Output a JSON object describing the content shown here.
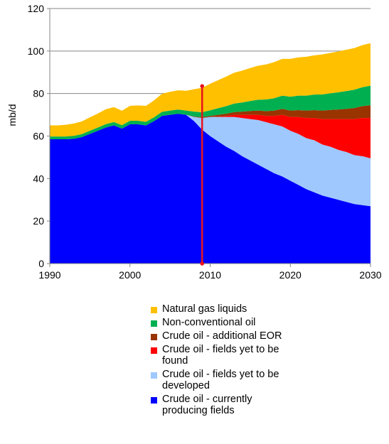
{
  "chart_data": {
    "type": "area",
    "stacked": true,
    "ylabel": "mb/d",
    "xlabel": "",
    "xlim": [
      1990,
      2030
    ],
    "ylim": [
      0,
      120
    ],
    "xticks": [
      "1990",
      "2000",
      "2010",
      "2020",
      "2030"
    ],
    "yticks": [
      "0",
      "20",
      "40",
      "60",
      "80",
      "100",
      "120"
    ],
    "grid": "horizontal",
    "legend_position": "bottom",
    "x": [
      1990,
      1991,
      1992,
      1993,
      1994,
      1995,
      1996,
      1997,
      1998,
      1999,
      2000,
      2001,
      2002,
      2003,
      2004,
      2005,
      2006,
      2007,
      2008,
      2009,
      2010,
      2011,
      2012,
      2013,
      2014,
      2015,
      2016,
      2017,
      2018,
      2019,
      2020,
      2021,
      2022,
      2023,
      2024,
      2025,
      2026,
      2027,
      2028,
      2029,
      2030
    ],
    "marker_line": {
      "x": 2009,
      "y_top": 83.5,
      "color": "#e8131b"
    },
    "series": [
      {
        "name": "Crude oil - currently producing fields",
        "color": "#0000ff",
        "values": [
          58.5,
          58.5,
          58.5,
          58.7,
          59.5,
          61,
          62.5,
          64,
          65,
          63.5,
          65.5,
          65.5,
          65,
          67,
          69.5,
          70,
          70.5,
          70,
          67,
          63,
          60,
          57.5,
          55,
          53,
          50.5,
          48.5,
          46.5,
          44.5,
          42.5,
          41,
          39,
          37,
          35,
          33.5,
          32,
          31,
          30,
          29,
          28,
          27.5,
          27
        ]
      },
      {
        "name": "Crude oil - fields yet to be developed",
        "color": "#9fc8ff",
        "values": [
          0,
          0,
          0,
          0,
          0,
          0,
          0,
          0,
          0,
          0,
          0,
          0,
          0,
          0,
          0,
          0,
          0,
          0,
          2,
          5.5,
          9,
          11.5,
          14,
          16,
          18,
          19.5,
          21,
          22,
          23,
          23.5,
          23.5,
          24,
          24,
          24.5,
          24,
          24,
          23.5,
          23.5,
          23,
          23,
          22.5
        ]
      },
      {
        "name": "Crude oil - fields yet to be found",
        "color": "#ff0000",
        "values": [
          0,
          0,
          0,
          0,
          0,
          0,
          0,
          0,
          0,
          0,
          0,
          0,
          0,
          0,
          0,
          0,
          0,
          0,
          0,
          0,
          0,
          0.2,
          0.5,
          1,
          1.5,
          2,
          2.5,
          3,
          4,
          5.5,
          6.5,
          8,
          9.5,
          10.5,
          12,
          13,
          14.5,
          15.5,
          17,
          18,
          19
        ]
      },
      {
        "name": "Crude oil - additional EOR",
        "color": "#993300",
        "values": [
          0,
          0,
          0,
          0,
          0,
          0,
          0,
          0,
          0,
          0,
          0,
          0,
          0,
          0,
          0,
          0,
          0,
          0,
          0.2,
          0.3,
          0.5,
          0.8,
          1,
          1.3,
          1.5,
          1.8,
          2,
          2.2,
          2.5,
          2.8,
          3,
          3.2,
          3.5,
          3.7,
          4,
          4.3,
          4.5,
          4.8,
          5.2,
          5.6,
          6
        ]
      },
      {
        "name": "Non-conventional oil",
        "color": "#00b050",
        "values": [
          1.3,
          1.3,
          1.3,
          1.4,
          1.4,
          1.5,
          1.5,
          1.6,
          1.6,
          1.6,
          1.7,
          1.7,
          1.7,
          1.8,
          1.9,
          2,
          2,
          2,
          2.3,
          2.4,
          2.6,
          3.1,
          3.6,
          4,
          4.3,
          4.7,
          5.1,
          5.5,
          5.8,
          6.2,
          6.5,
          6.8,
          7,
          7.3,
          7.6,
          7.8,
          8.1,
          8.4,
          8.6,
          8.9,
          9.2
        ]
      },
      {
        "name": "Natural gas liquids",
        "color": "#ffc000",
        "values": [
          5.2,
          5.2,
          5.5,
          5.8,
          6,
          6.3,
          6.6,
          7,
          7,
          6.8,
          7,
          7.2,
          7.5,
          8,
          8.5,
          8.8,
          9,
          9.3,
          10.5,
          11.5,
          12.5,
          13.2,
          13.9,
          14.5,
          15,
          15.5,
          16,
          16.5,
          17,
          17.3,
          17.8,
          18,
          18.3,
          18.5,
          18.8,
          19,
          19.2,
          19.4,
          19.6,
          19.8,
          20
        ]
      }
    ]
  },
  "legend": {
    "items": [
      {
        "label": "Natural gas liquids",
        "color": "#ffc000"
      },
      {
        "label": "Non-conventional oil",
        "color": "#00b050"
      },
      {
        "label": "Crude oil - additional EOR",
        "color": "#993300"
      },
      {
        "label": "Crude oil - fields yet to be found",
        "color": "#ff0000"
      },
      {
        "label": "Crude oil - fields yet to be developed",
        "color": "#9fc8ff"
      },
      {
        "label": "Crude oil - currently producing fields",
        "color": "#0000ff"
      }
    ]
  }
}
